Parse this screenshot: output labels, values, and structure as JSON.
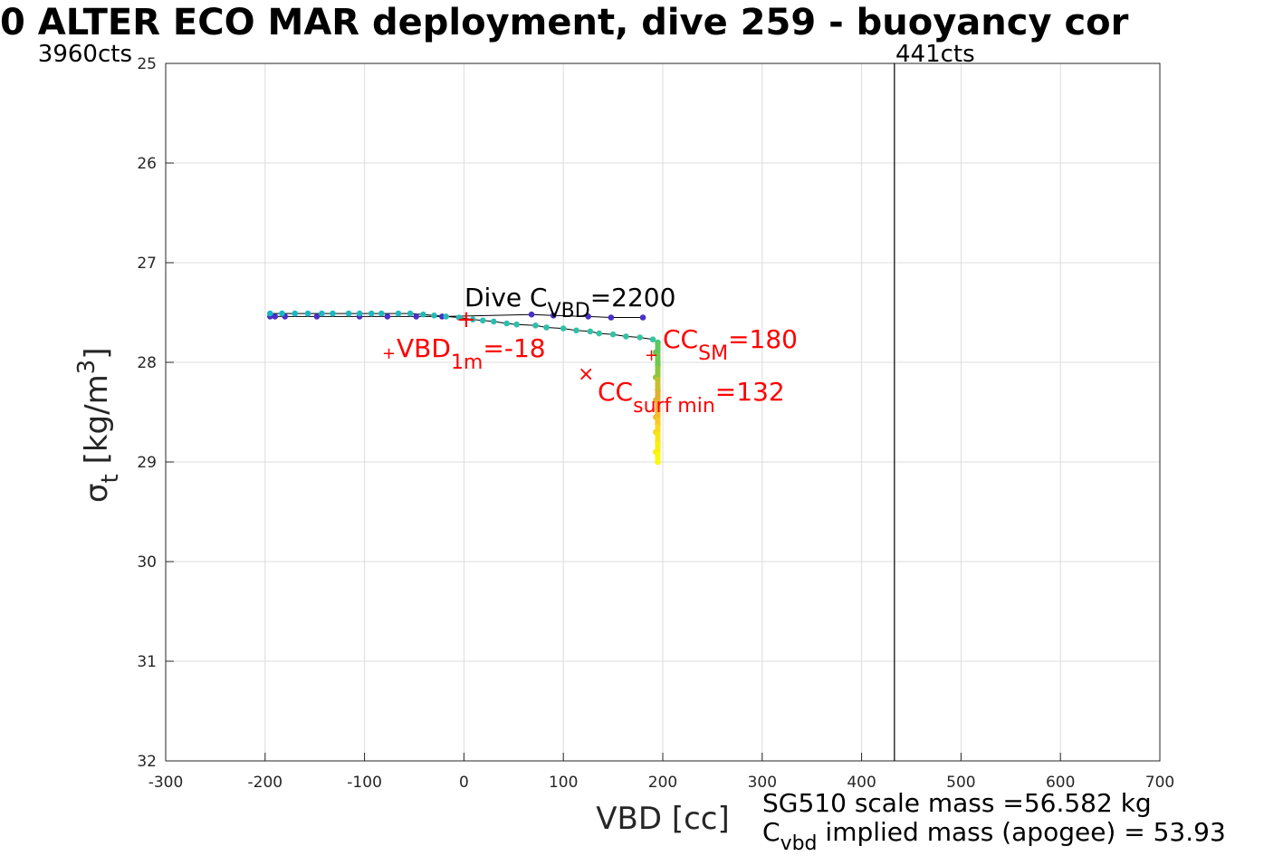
{
  "chart_data": {
    "type": "scatter",
    "title": "0 ALTER ECO MAR deployment, dive 259 - buoyancy cor",
    "xlabel": "VBD [cc]",
    "ylabel_main": "σ",
    "ylabel_sub": "t",
    "ylabel_units": " [kg/m",
    "ylabel_sup": "3",
    "ylabel_close": "]",
    "xlim": [
      -300,
      700
    ],
    "ylim": [
      25,
      32
    ],
    "y_reversed": true,
    "grid": true,
    "xticks": [
      -300,
      -200,
      -100,
      0,
      100,
      200,
      300,
      400,
      500,
      600,
      700
    ],
    "yticks": [
      25,
      26,
      27,
      28,
      29,
      30,
      31,
      32
    ],
    "left_count_label": "3960cts",
    "right_count_label": "441cts",
    "count_line_x": 433,
    "dive_series": {
      "color": "#4a2fc8",
      "x": [
        -195,
        -190,
        -180,
        -148,
        -105,
        -77,
        -48,
        -22,
        68,
        90,
        125,
        148,
        180
      ],
      "y": [
        27.54,
        27.54,
        27.54,
        27.54,
        27.54,
        27.54,
        27.54,
        27.54,
        27.52,
        27.53,
        27.54,
        27.55,
        27.55
      ]
    },
    "climb_series": {
      "color": "#17b5c8",
      "x": [
        -195,
        -183,
        -170,
        -157,
        -143,
        -132,
        -116,
        -105,
        -93,
        -83,
        -66,
        -54,
        -41,
        -30,
        -18,
        -5,
        9,
        19,
        30,
        43,
        53,
        72,
        83,
        100,
        113,
        127,
        136,
        150,
        163,
        177,
        190
      ],
      "y": [
        27.51,
        27.51,
        27.51,
        27.51,
        27.51,
        27.51,
        27.51,
        27.51,
        27.51,
        27.51,
        27.51,
        27.51,
        27.52,
        27.53,
        27.54,
        27.55,
        27.57,
        27.58,
        27.59,
        27.61,
        27.62,
        27.63,
        27.65,
        27.66,
        27.68,
        27.69,
        27.71,
        27.72,
        27.74,
        27.75,
        27.77
      ]
    },
    "surface_series": {
      "x": [
        195,
        193,
        195,
        193,
        195,
        193,
        195,
        193,
        195,
        193,
        195,
        193,
        195
      ],
      "y": [
        27.8,
        27.9,
        28.03,
        28.15,
        28.28,
        28.38,
        28.47,
        28.55,
        28.62,
        28.7,
        28.8,
        28.9,
        29.0
      ]
    },
    "annotations": {
      "dive_c": "Dive C",
      "dive_c_sub": "VBD",
      "dive_c_val": "=2200",
      "vbd1m": "VBD",
      "vbd1m_sub": "1m",
      "vbd1m_val": "=-18",
      "ccsm": "CC",
      "ccsm_sub": "SM",
      "ccsm_val": "=180",
      "ccsurf": "CC",
      "ccsurf_sub": "surf min",
      "ccsurf_val": "=132",
      "mass_line1": "SG510 scale mass =56.582 kg",
      "mass_c": "C",
      "mass_c_sub": "vbd",
      "mass_line2": " implied mass (apogee) = 53.93"
    },
    "marker_color": "#ff0000"
  }
}
